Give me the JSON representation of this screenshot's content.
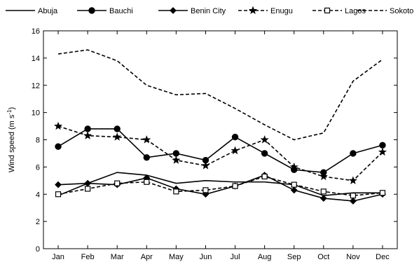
{
  "chart_data": {
    "type": "line",
    "title": "",
    "xlabel": "",
    "ylabel_main": "Wind speed (m s",
    "ylabel_sup": "-1",
    "ylabel_tail": ")",
    "ylim": [
      0,
      16
    ],
    "yticks": [
      0,
      2,
      4,
      6,
      8,
      10,
      12,
      14,
      16
    ],
    "grid": false,
    "legend_position": "top",
    "categories": [
      "Jan",
      "Feb",
      "Mar",
      "Apr",
      "May",
      "Jun",
      "Jul",
      "Aug",
      "Sep",
      "Oct",
      "Nov",
      "Dec"
    ],
    "series": [
      {
        "name": "Abuja",
        "marker": "none",
        "dash": "solid",
        "values": [
          3.9,
          4.8,
          5.6,
          5.4,
          4.8,
          5.0,
          4.9,
          4.9,
          4.7,
          3.9,
          4.1,
          4.1
        ]
      },
      {
        "name": "Bauchi",
        "marker": "circle",
        "dash": "solid",
        "values": [
          7.5,
          8.8,
          8.8,
          6.7,
          7.0,
          6.5,
          8.2,
          7.0,
          5.8,
          5.6,
          7.0,
          7.6
        ]
      },
      {
        "name": "Benin City",
        "marker": "diamond",
        "dash": "solid",
        "values": [
          4.7,
          4.8,
          4.7,
          5.2,
          4.4,
          4.0,
          4.6,
          5.4,
          4.3,
          3.7,
          3.5,
          4.0
        ]
      },
      {
        "name": "Enugu",
        "marker": "star",
        "dash": "dashed",
        "values": [
          9.0,
          8.3,
          8.2,
          8.0,
          6.5,
          6.1,
          7.2,
          8.0,
          6.0,
          5.3,
          5.0,
          7.1
        ]
      },
      {
        "name": "Lagos",
        "marker": "square",
        "dash": "dashed",
        "values": [
          4.0,
          4.4,
          4.8,
          4.9,
          4.2,
          4.3,
          4.6,
          5.3,
          4.7,
          4.2,
          3.9,
          4.1
        ]
      },
      {
        "name": "Sokoto",
        "marker": "none",
        "dash": "dashed",
        "values": [
          14.3,
          14.6,
          13.8,
          12.0,
          11.3,
          11.4,
          10.3,
          9.1,
          8.0,
          8.5,
          12.3,
          13.9
        ]
      }
    ]
  }
}
